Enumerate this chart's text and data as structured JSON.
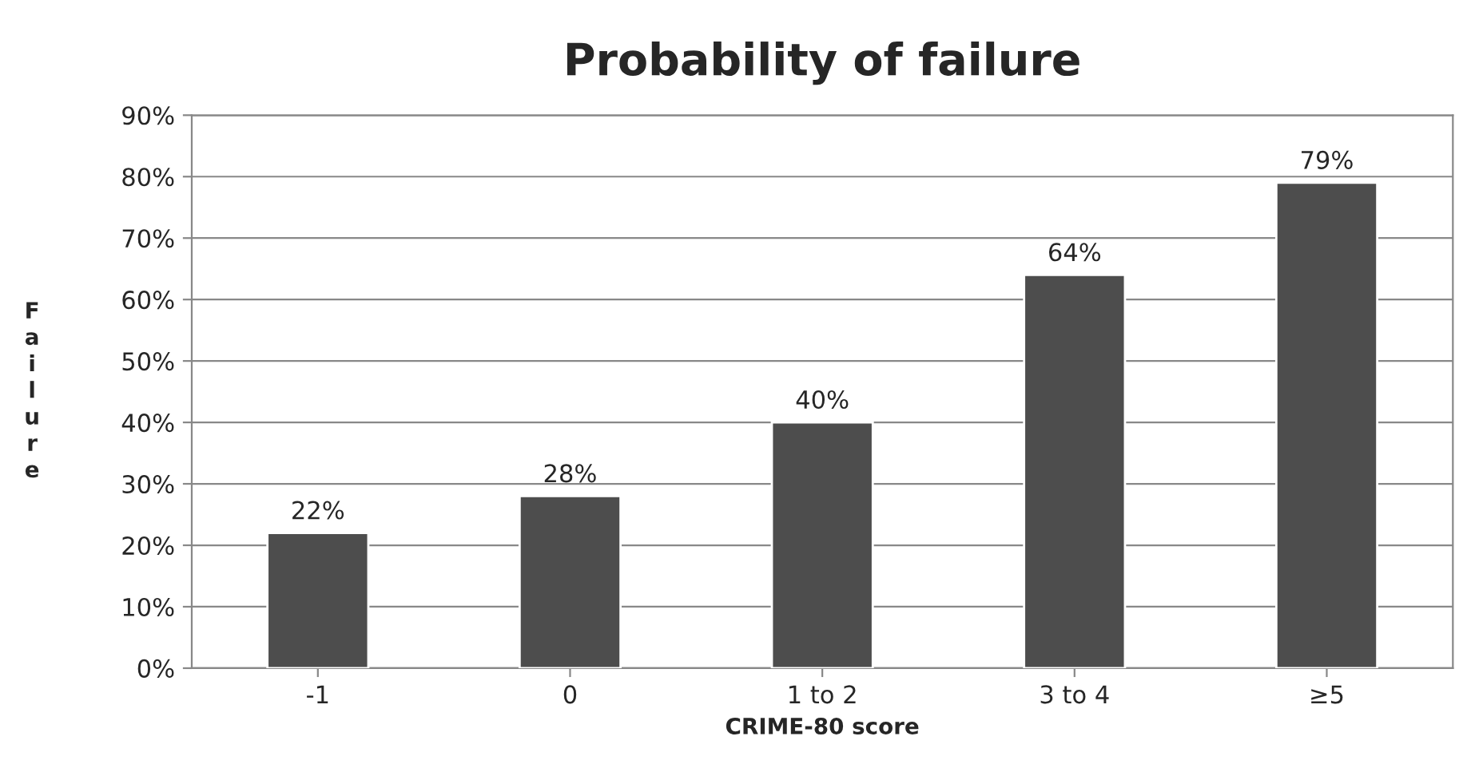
{
  "chart_data": {
    "type": "bar",
    "title": "Probability of failure",
    "xlabel": "CRIME-80 score",
    "ylabel": "Failure",
    "categories": [
      "-1",
      "0",
      "1 to 2",
      "3 to 4",
      "≥5"
    ],
    "values": [
      22,
      28,
      40,
      64,
      79
    ],
    "value_labels": [
      "22%",
      "28%",
      "40%",
      "64%",
      "79%"
    ],
    "color": "#4d4d4d",
    "ylim": [
      0,
      90
    ],
    "yticks": [
      {
        "value": 0,
        "label": "0%"
      },
      {
        "value": 10,
        "label": "10%"
      },
      {
        "value": 20,
        "label": "20%"
      },
      {
        "value": 30,
        "label": "30%"
      },
      {
        "value": 40,
        "label": "40%"
      },
      {
        "value": 50,
        "label": "50%"
      },
      {
        "value": 60,
        "label": "60%"
      },
      {
        "value": 70,
        "label": "70%"
      },
      {
        "value": 80,
        "label": "80%"
      },
      {
        "value": 90,
        "label": "90%"
      }
    ],
    "grid": "y"
  }
}
